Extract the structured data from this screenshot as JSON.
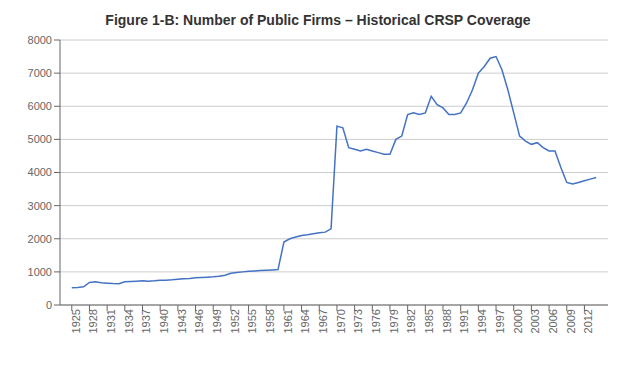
{
  "chart_data": {
    "type": "line",
    "title": "Figure 1-B: Number of Public Firms – Historical CRSP Coverage",
    "color": "#4472C4",
    "grid": "y",
    "x": [
      1925,
      1926,
      1927,
      1928,
      1929,
      1930,
      1931,
      1932,
      1933,
      1934,
      1935,
      1936,
      1937,
      1938,
      1939,
      1940,
      1941,
      1942,
      1943,
      1944,
      1945,
      1946,
      1947,
      1948,
      1949,
      1950,
      1951,
      1952,
      1953,
      1954,
      1955,
      1956,
      1957,
      1958,
      1959,
      1960,
      1961,
      1962,
      1963,
      1964,
      1965,
      1966,
      1967,
      1968,
      1969,
      1970,
      1971,
      1972,
      1973,
      1974,
      1975,
      1976,
      1977,
      1978,
      1979,
      1980,
      1981,
      1982,
      1983,
      1984,
      1985,
      1986,
      1987,
      1988,
      1989,
      1990,
      1991,
      1992,
      1993,
      1994,
      1995,
      1996,
      1997,
      1998,
      1999,
      2000,
      2001,
      2002,
      2003,
      2004,
      2005,
      2006,
      2007,
      2008,
      2009,
      2010,
      2011,
      2012,
      2013,
      2014
    ],
    "values": [
      520,
      530,
      550,
      680,
      700,
      670,
      660,
      650,
      645,
      700,
      710,
      720,
      730,
      720,
      730,
      745,
      750,
      760,
      775,
      790,
      800,
      820,
      830,
      840,
      850,
      870,
      900,
      960,
      980,
      1000,
      1020,
      1030,
      1040,
      1050,
      1060,
      1070,
      1900,
      2000,
      2050,
      2100,
      2120,
      2150,
      2180,
      2200,
      2300,
      5400,
      5350,
      4750,
      4700,
      4650,
      4700,
      4650,
      4600,
      4550,
      4550,
      5000,
      5100,
      5750,
      5800,
      5750,
      5800,
      6300,
      6050,
      5950,
      5750,
      5750,
      5800,
      6100,
      6500,
      7000,
      7200,
      7450,
      7500,
      7100,
      6500,
      5800,
      5100,
      4950,
      4850,
      4900,
      4750,
      4650,
      4650,
      4150,
      3700,
      3650,
      3700,
      3750,
      3800,
      3850
    ],
    "xlim": [
      1923,
      2016
    ],
    "xticks": [
      1925,
      1928,
      1931,
      1934,
      1937,
      1940,
      1943,
      1946,
      1949,
      1952,
      1955,
      1958,
      1961,
      1964,
      1967,
      1970,
      1973,
      1976,
      1979,
      1982,
      1985,
      1988,
      1991,
      1994,
      1997,
      2000,
      2003,
      2006,
      2009,
      2012
    ],
    "ylim": [
      0,
      8000
    ],
    "yticks": [
      0,
      1000,
      2000,
      3000,
      4000,
      5000,
      6000,
      7000,
      8000
    ]
  }
}
